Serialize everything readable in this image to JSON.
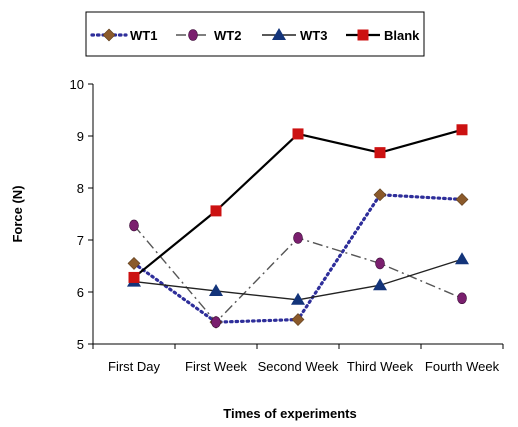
{
  "chart_data": {
    "type": "line",
    "title": "",
    "xlabel": "Times of experiments",
    "ylabel": "Force (N)",
    "categories": [
      "First Day",
      "First Week",
      "Second Week",
      "Third Week",
      "Fourth Week"
    ],
    "ylim": [
      5,
      10
    ],
    "yticks": [
      5,
      6,
      7,
      8,
      9,
      10
    ],
    "grid": false,
    "legend_position": "top",
    "series": [
      {
        "name": "WT1",
        "values": [
          6.55,
          5.42,
          5.47,
          7.87,
          7.78
        ],
        "color": "#2e2e9a",
        "marker": "diamond",
        "marker_color": "#8b5a2b",
        "line_style": "dotted"
      },
      {
        "name": "WT2",
        "values": [
          7.28,
          5.42,
          7.04,
          6.55,
          5.88
        ],
        "color": "#555555",
        "marker": "circle",
        "marker_color": "#7a1f6e",
        "line_style": "dash-dot"
      },
      {
        "name": "WT3",
        "values": [
          6.2,
          6.02,
          5.85,
          6.13,
          6.63
        ],
        "color": "#222222",
        "marker": "triangle",
        "marker_color": "#13347a",
        "line_style": "solid"
      },
      {
        "name": "Blank",
        "values": [
          6.28,
          7.56,
          9.04,
          8.68,
          9.12
        ],
        "color": "#000000",
        "marker": "square",
        "marker_color": "#cc1111",
        "line_style": "solid-bold"
      }
    ]
  }
}
